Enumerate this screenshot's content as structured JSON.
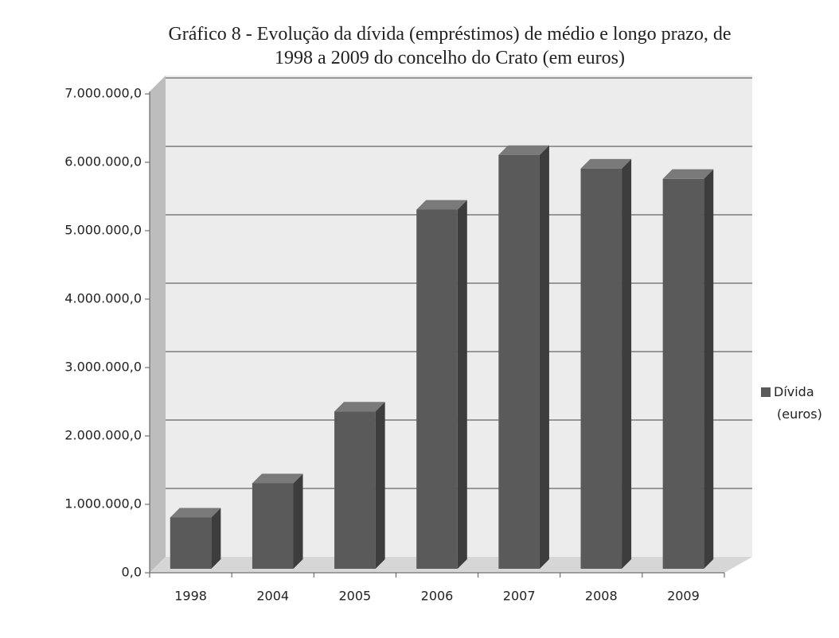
{
  "chart_data": {
    "type": "bar",
    "title": "Gráfico 8 - Evolução da dívida (empréstimos) de médio e longo prazo, de 1998 a 2009 do concelho do Crato (em euros)",
    "categories": [
      "1998",
      "2004",
      "2005",
      "2006",
      "2007",
      "2008",
      "2009"
    ],
    "series": [
      {
        "name": "Dívida (euros)",
        "color": "#5a5a5a",
        "values": [
          750000,
          1250000,
          2300000,
          5250000,
          6050000,
          5850000,
          5700000
        ]
      }
    ],
    "ylim": [
      0,
      7000000
    ],
    "yticks": [
      {
        "value": 0,
        "label": "0,0"
      },
      {
        "value": 1000000,
        "label": "1.000.000,0"
      },
      {
        "value": 2000000,
        "label": "2.000.000,0"
      },
      {
        "value": 3000000,
        "label": "3.000.000,0"
      },
      {
        "value": 4000000,
        "label": "4.000.000,0"
      },
      {
        "value": 5000000,
        "label": "5.000.000,0"
      },
      {
        "value": 6000000,
        "label": "6.000.000,0"
      },
      {
        "value": 7000000,
        "label": "7.000.000,0"
      }
    ],
    "grid": true,
    "legend": "right"
  }
}
